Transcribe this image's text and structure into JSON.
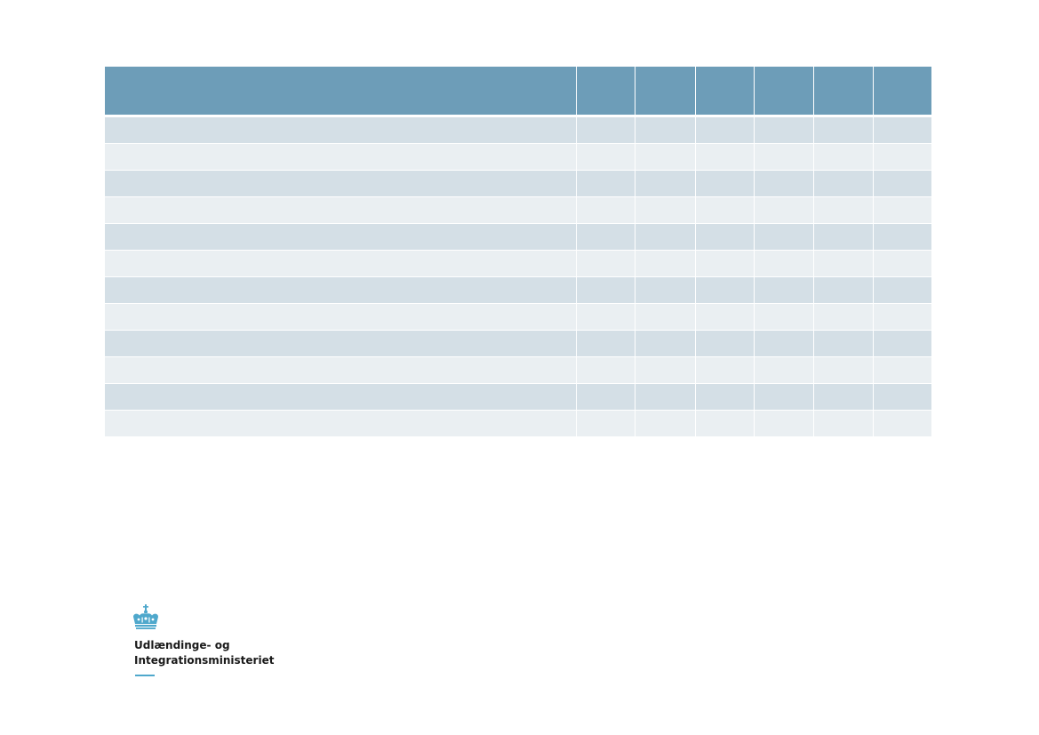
{
  "table": {
    "header": [
      "",
      "",
      "",
      "",
      "",
      "",
      ""
    ],
    "rows": [
      [
        "",
        "",
        "",
        "",
        "",
        "",
        ""
      ],
      [
        "",
        "",
        "",
        "",
        "",
        "",
        ""
      ],
      [
        "",
        "",
        "",
        "",
        "",
        "",
        ""
      ],
      [
        "",
        "",
        "",
        "",
        "",
        "",
        ""
      ],
      [
        "",
        "",
        "",
        "",
        "",
        "",
        ""
      ],
      [
        "",
        "",
        "",
        "",
        "",
        "",
        ""
      ],
      [
        "",
        "",
        "",
        "",
        "",
        "",
        ""
      ],
      [
        "",
        "",
        "",
        "",
        "",
        "",
        ""
      ],
      [
        "",
        "",
        "",
        "",
        "",
        "",
        ""
      ],
      [
        "",
        "",
        "",
        "",
        "",
        "",
        ""
      ],
      [
        "",
        "",
        "",
        "",
        "",
        "",
        ""
      ],
      [
        "",
        "",
        "",
        "",
        "",
        "",
        ""
      ]
    ],
    "colors": {
      "header": "#6d9db8",
      "row_odd": "#d4dfe6",
      "row_even": "#eaeff2"
    }
  },
  "logo": {
    "icon": "crown-icon",
    "line1": "Udlændinge- og",
    "line2": "Integrationsministeriet",
    "accent_color": "#4fa8cc"
  }
}
